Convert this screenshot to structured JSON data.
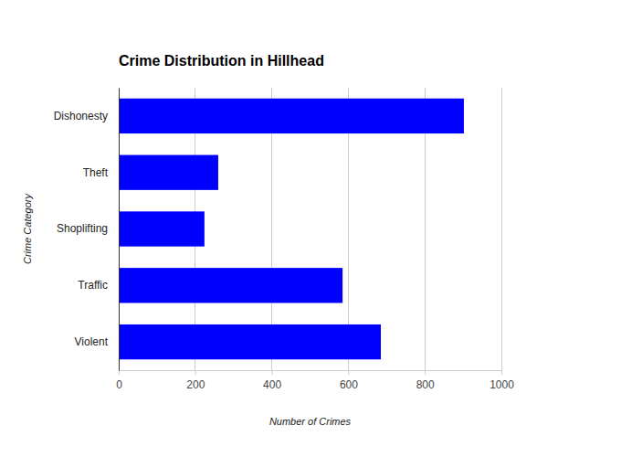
{
  "chart_data": {
    "type": "bar",
    "orientation": "horizontal",
    "title": "Crime Distribution in Hillhead",
    "x_label": "Number of Crimes",
    "y_label": "Crime Category",
    "categories": [
      "Dishonesty",
      "Theft",
      "Shoplifting",
      "Traffic",
      "Violent"
    ],
    "values": [
      902,
      260,
      224,
      585,
      685
    ],
    "color": "#0000ff",
    "xlim": [
      0,
      1000
    ],
    "xticks": [
      0,
      200,
      400,
      600,
      800,
      1000
    ],
    "grid": true
  }
}
